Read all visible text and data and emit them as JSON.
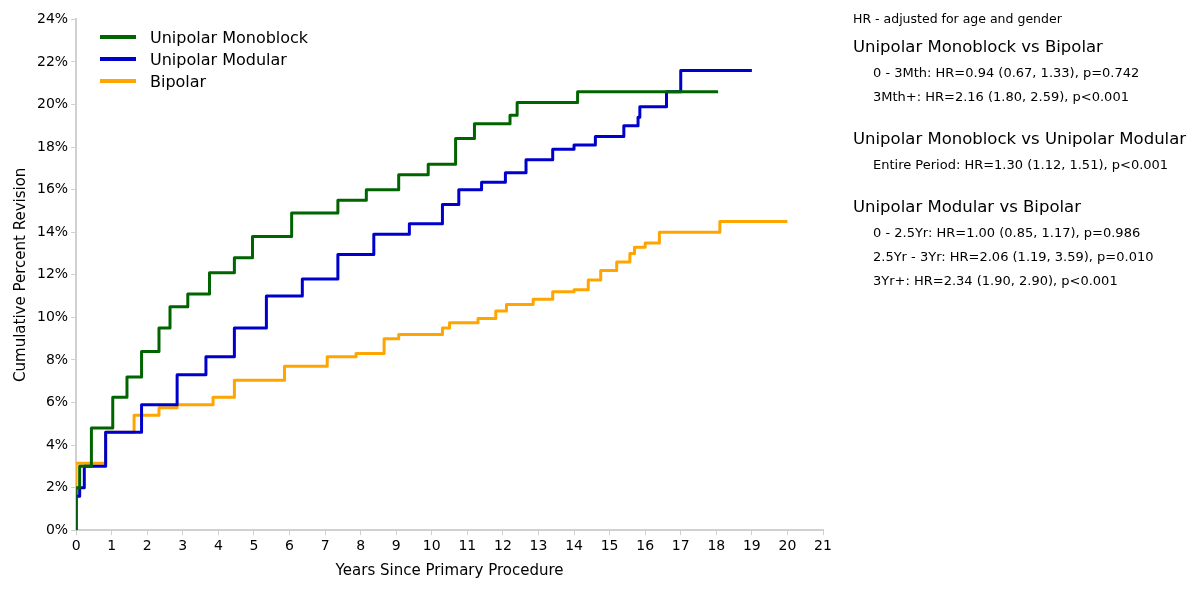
{
  "chart_data": {
    "type": "step",
    "xlabel": "Years Since Primary Procedure",
    "ylabel": "Cumulative Percent Revision",
    "xlim": [
      0,
      21
    ],
    "xticks": [
      0,
      1,
      2,
      3,
      4,
      5,
      6,
      7,
      8,
      9,
      10,
      11,
      12,
      13,
      14,
      15,
      16,
      17,
      18,
      19,
      20,
      21
    ],
    "ylim": [
      0,
      24
    ],
    "yticks": [
      {
        "value": 0,
        "label": "0%"
      },
      {
        "value": 2,
        "label": "2%"
      },
      {
        "value": 4,
        "label": "4%"
      },
      {
        "value": 6,
        "label": "6%"
      },
      {
        "value": 8,
        "label": "8%"
      },
      {
        "value": 10,
        "label": "10%"
      },
      {
        "value": 12,
        "label": "12%"
      },
      {
        "value": 14,
        "label": "14%"
      },
      {
        "value": 16,
        "label": "16%"
      },
      {
        "value": 18,
        "label": "18%"
      },
      {
        "value": 20,
        "label": "20%"
      },
      {
        "value": 22,
        "label": "22%"
      },
      {
        "value": 24,
        "label": "24%"
      }
    ],
    "grid": false,
    "legend": "top left",
    "marker": "none",
    "series": [
      {
        "name": "Unipolar Monoblock",
        "color": "#006400",
        "x": [
          0,
          0.1,
          0.43,
          1.03,
          1.43,
          1.84,
          2.33,
          2.64,
          3.14,
          3.75,
          4.45,
          4.96,
          6.06,
          7.36,
          8.16,
          9.07,
          9.9,
          10.67,
          11.2,
          12.2,
          12.4,
          14.1,
          15.0,
          18.05
        ],
        "values": [
          0,
          2,
          3,
          4.8,
          6.25,
          7.2,
          8.4,
          9.5,
          10.5,
          11.1,
          12.1,
          12.8,
          13.8,
          14.9,
          15.5,
          16,
          16.7,
          17.2,
          18.4,
          19.1,
          19.5,
          20.1,
          20.6,
          20.6
        ]
      },
      {
        "name": "Unipolar Modular",
        "color": "#0000cd",
        "x": [
          0,
          0.1,
          0.23,
          0.83,
          1.84,
          2.84,
          3.65,
          4.45,
          5.35,
          6.36,
          7.36,
          8.37,
          9.37,
          10.3,
          10.76,
          11.4,
          12.07,
          12.65,
          13.4,
          14.0,
          14.6,
          15.4,
          15.8,
          15.85,
          16.6,
          17.0,
          17.55,
          19.0
        ],
        "values": [
          0,
          1.6,
          2,
          3,
          4.6,
          5.9,
          7.3,
          8.15,
          9.5,
          11,
          11.8,
          12.95,
          13.9,
          14.4,
          15.3,
          16,
          16.35,
          16.8,
          17.4,
          17.9,
          18.1,
          18.5,
          19,
          19.4,
          19.9,
          20.6,
          21.6,
          21.6
        ]
      },
      {
        "name": "Bipolar",
        "color": "#ffa500",
        "x": [
          0,
          0.83,
          1.63,
          2.33,
          2.84,
          3.85,
          4.45,
          5.86,
          7.06,
          7.87,
          8.66,
          9.07,
          10.3,
          10.5,
          11.3,
          11.8,
          12.1,
          12.85,
          13.4,
          14.0,
          14.4,
          14.75,
          15.2,
          15.57,
          15.7,
          16.0,
          16.4,
          18.1,
          18.55,
          20.0
        ],
        "values": [
          0,
          3.15,
          4.6,
          5.4,
          5.75,
          5.9,
          6.25,
          7.05,
          7.7,
          8.15,
          8.3,
          9,
          9.2,
          9.5,
          9.75,
          9.95,
          10.3,
          10.6,
          10.85,
          11.2,
          11.3,
          11.75,
          12.2,
          12.6,
          13,
          13.3,
          13.5,
          14,
          14.5,
          14.5
        ]
      }
    ],
    "annotations": [
      "HR - adjusted for age and gender",
      "Unipolar Monoblock vs Bipolar",
      "0 - 3Mth: HR=0.94 (0.67, 1.33), p=0.742",
      "3Mth+: HR=2.16 (1.80, 2.59), p<0.001",
      "Unipolar Monoblock vs Unipolar Modular",
      "Entire Period: HR=1.30 (1.12, 1.51), p<0.001",
      "Unipolar Modular vs Bipolar",
      "0 - 2.5Yr: HR=1.00 (0.85, 1.17), p=0.986",
      "2.5Yr - 3Yr: HR=2.06 (1.19, 3.59), p=0.010",
      "3Yr+: HR=2.34 (1.90, 2.90), p<0.001"
    ]
  }
}
